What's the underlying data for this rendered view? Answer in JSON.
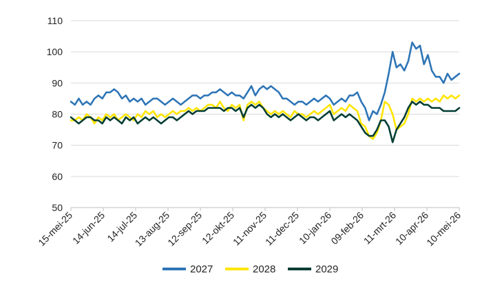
{
  "chart_data": {
    "type": "line",
    "title": "",
    "xlabel": "",
    "ylabel": "",
    "ylim": [
      50,
      110
    ],
    "yticks": [
      50,
      60,
      70,
      80,
      90,
      100,
      110
    ],
    "x_tick_labels": [
      "15-mei-25",
      "14-jun-25",
      "14-jul-25",
      "13-aug-25",
      "12-sep-25",
      "12-okt-25",
      "11-nov-25",
      "11-dec-25",
      "10-jan-26",
      "09-feb-26",
      "11-mrt-26",
      "10-apr-26",
      "10-mei-26"
    ],
    "grid": "horizontal",
    "legend": "bottom",
    "series": [
      {
        "name": "2027",
        "color": "#2e75b6",
        "values": [
          84,
          83,
          85,
          83,
          84,
          83,
          85,
          86,
          85,
          87,
          87,
          88,
          87,
          85,
          86,
          84,
          85,
          84,
          85,
          83,
          84,
          85,
          85,
          84,
          83,
          84,
          85,
          84,
          83,
          84,
          85,
          86,
          86,
          85,
          86,
          86,
          87,
          87,
          88,
          87,
          86,
          87,
          86,
          86,
          85,
          87,
          89,
          86,
          88,
          89,
          88,
          89,
          88,
          87,
          85,
          85,
          84,
          83,
          84,
          84,
          83,
          84,
          85,
          84,
          85,
          86,
          85,
          83,
          84,
          85,
          84,
          86,
          86,
          87,
          84,
          82,
          78,
          81,
          80,
          83,
          87,
          93,
          100,
          95,
          96,
          94,
          97,
          103,
          101,
          102,
          96,
          99,
          94,
          92,
          92,
          90,
          93,
          91,
          92,
          93
        ]
      },
      {
        "name": "2028",
        "color": "#ffe500",
        "values": [
          78,
          78,
          79,
          78,
          80,
          79,
          77,
          79,
          78,
          80,
          79,
          80,
          78,
          79,
          80,
          79,
          78,
          80,
          79,
          81,
          80,
          81,
          79,
          80,
          79,
          80,
          81,
          80,
          81,
          81,
          82,
          81,
          82,
          81,
          82,
          83,
          83,
          82,
          84,
          82,
          81,
          83,
          82,
          83,
          78,
          83,
          84,
          83,
          84,
          82,
          81,
          80,
          81,
          80,
          81,
          80,
          79,
          81,
          80,
          80,
          79,
          80,
          81,
          80,
          81,
          82,
          83,
          80,
          81,
          82,
          81,
          83,
          82,
          81,
          77,
          76,
          73,
          72,
          74,
          78,
          84,
          83,
          80,
          75,
          76,
          77,
          80,
          85,
          84,
          85,
          84,
          85,
          84,
          85,
          84,
          86,
          85,
          86,
          85,
          86
        ]
      },
      {
        "name": "2029",
        "color": "#003d33",
        "values": [
          79,
          78,
          77,
          78,
          79,
          79,
          78,
          78,
          77,
          79,
          78,
          79,
          78,
          77,
          79,
          78,
          79,
          77,
          78,
          79,
          78,
          79,
          78,
          77,
          78,
          79,
          79,
          78,
          79,
          80,
          81,
          80,
          81,
          81,
          81,
          82,
          82,
          82,
          82,
          81,
          82,
          82,
          81,
          82,
          79,
          82,
          83,
          82,
          83,
          82,
          80,
          79,
          80,
          79,
          80,
          79,
          78,
          79,
          80,
          79,
          78,
          79,
          79,
          78,
          79,
          80,
          81,
          78,
          79,
          80,
          79,
          80,
          79,
          78,
          76,
          74,
          73,
          73,
          75,
          78,
          78,
          76,
          71,
          75,
          77,
          79,
          82,
          84,
          83,
          84,
          83,
          83,
          82,
          82,
          82,
          81,
          81,
          81,
          81,
          82
        ]
      }
    ]
  }
}
